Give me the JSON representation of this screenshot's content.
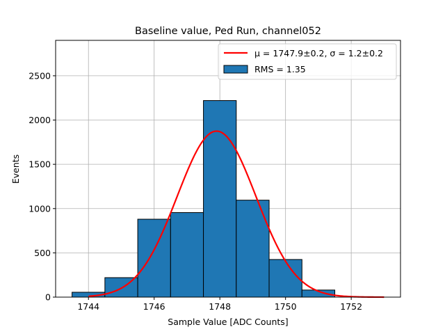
{
  "chart_data": {
    "type": "bar",
    "title": "Baseline value, Ped Run, channel052",
    "xlabel": "Sample Value [ADC Counts]",
    "ylabel": "Events",
    "xlim": [
      1743.0,
      1753.5
    ],
    "ylim": [
      0,
      2900
    ],
    "xticks": [
      1744,
      1746,
      1748,
      1750,
      1752
    ],
    "yticks": [
      0,
      500,
      1000,
      1500,
      2000,
      2500
    ],
    "grid": true,
    "legend_position": "top-right",
    "bins": [
      {
        "lo": 1743.5,
        "hi": 1744.5,
        "value": 55
      },
      {
        "lo": 1744.5,
        "hi": 1745.5,
        "value": 220
      },
      {
        "lo": 1745.5,
        "hi": 1746.5,
        "value": 880
      },
      {
        "lo": 1746.5,
        "hi": 1747.5,
        "value": 955
      },
      {
        "lo": 1747.5,
        "hi": 1748.5,
        "value": 2220
      },
      {
        "lo": 1748.5,
        "hi": 1749.5,
        "value": 1095
      },
      {
        "lo": 1749.5,
        "hi": 1750.5,
        "value": 425
      },
      {
        "lo": 1750.5,
        "hi": 1751.5,
        "value": 80
      }
    ],
    "bar_color": "#1f77b4",
    "fit": {
      "type": "gaussian",
      "mu": 1747.9,
      "sigma": 1.2,
      "amplitude": 1875,
      "x_range": [
        1744,
        1753
      ],
      "color": "#ff0000"
    },
    "legend": [
      {
        "kind": "line",
        "label": "μ = 1747.9±0.2, σ = 1.2±0.2",
        "color": "#ff0000"
      },
      {
        "kind": "patch",
        "label": "RMS = 1.35",
        "color": "#1f77b4"
      }
    ]
  }
}
